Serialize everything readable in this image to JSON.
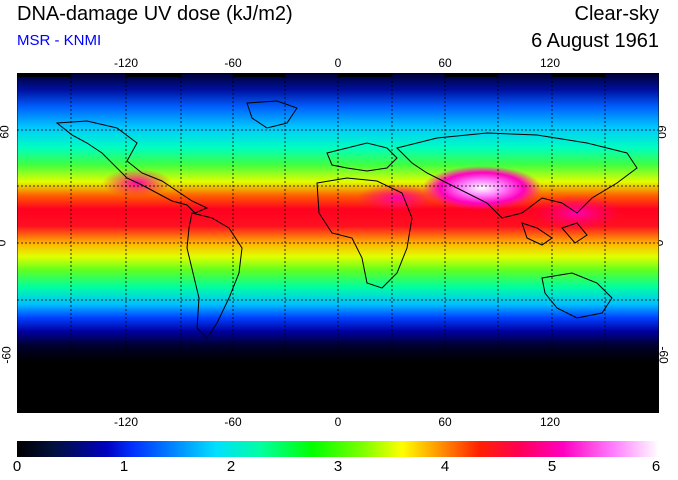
{
  "header": {
    "title": "DNA-damage UV dose (kJ/m2)",
    "subtitle": "MSR - KNMI",
    "condition": "Clear-sky",
    "date": "6 August 1961"
  },
  "map": {
    "longitude_labels": [
      "-120",
      "-60",
      "0",
      "60",
      "120"
    ],
    "latitude_labels": [
      "60",
      "0",
      "-60"
    ]
  },
  "colorbar": {
    "labels": [
      "0",
      "1",
      "2",
      "3",
      "4",
      "5",
      "6"
    ]
  },
  "colors": {
    "subtitle": "#0000ff",
    "scale": [
      "#000000",
      "#0000c0",
      "#0080ff",
      "#00ffa0",
      "#00ff00",
      "#ffff00",
      "#ff2000",
      "#ff00c0",
      "#ffffff"
    ]
  }
}
